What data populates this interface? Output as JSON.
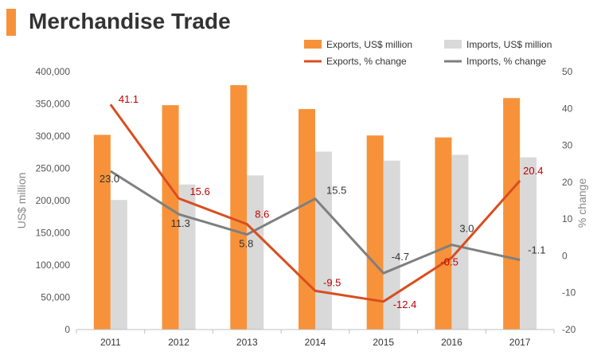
{
  "header": {
    "title": "Merchandise Trade",
    "accent_color": "#f7923a"
  },
  "colors": {
    "exports_bar": "#f7923a",
    "imports_bar": "#d9d9d9",
    "exports_line": "#d94e1e",
    "imports_line": "#7f7f7f",
    "exports_label": "#c00000",
    "imports_label": "#333333",
    "axis_text": "#555555",
    "grid": "#d9d9d9"
  },
  "chart_data": {
    "type": "bar",
    "categories": [
      "2011",
      "2012",
      "2013",
      "2014",
      "2015",
      "2016",
      "2017"
    ],
    "series": [
      {
        "name": "Exports, US$ million",
        "type": "bar",
        "axis": "left",
        "values": [
          302000,
          348000,
          379000,
          342000,
          301000,
          298000,
          359000
        ]
      },
      {
        "name": "Imports, US$ million",
        "type": "bar",
        "axis": "left",
        "values": [
          201000,
          225000,
          239000,
          276000,
          262000,
          271000,
          267000
        ]
      },
      {
        "name": "Exports, % change",
        "type": "line",
        "axis": "right",
        "values": [
          41.1,
          15.6,
          8.6,
          -9.5,
          -12.4,
          -0.5,
          20.4
        ],
        "labels": [
          "41.1",
          "15.6",
          "8.6",
          "-9.5",
          "-12.4",
          "-0.5",
          "20.4"
        ]
      },
      {
        "name": "Imports, % change",
        "type": "line",
        "axis": "right",
        "values": [
          23.0,
          11.3,
          5.8,
          15.5,
          -4.7,
          3.0,
          -1.1
        ],
        "labels": [
          "23.0",
          "11.3",
          "5.8",
          "15.5",
          "-4.7",
          "3.0",
          "-1.1"
        ]
      }
    ],
    "ylabel": "US$ million",
    "y2label": "% change",
    "ylim": [
      0,
      400000
    ],
    "y2lim": [
      -20,
      50
    ],
    "yticks": [
      "0",
      "50,000",
      "100,000",
      "150,000",
      "200,000",
      "250,000",
      "300,000",
      "350,000",
      "400,000"
    ],
    "y2ticks": [
      "-20",
      "-10",
      "0",
      "10",
      "20",
      "30",
      "40",
      "50"
    ],
    "legend_position": "top-right",
    "grid": false
  }
}
